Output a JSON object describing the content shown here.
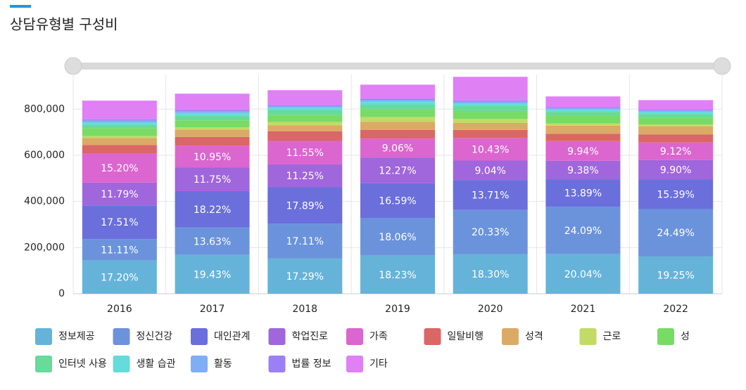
{
  "chart_data": {
    "type": "stacked_bar",
    "title": "상담유형별 구성비",
    "categories": [
      "2016",
      "2017",
      "2018",
      "2019",
      "2020",
      "2021",
      "2022"
    ],
    "ylim": [
      0,
      950000
    ],
    "yticks": [
      0,
      {
        "value": 200000,
        "label": "200,000"
      },
      {
        "value": 400000,
        "label": "400,000"
      },
      {
        "value": 600000,
        "label": "600,000"
      },
      {
        "value": 800000,
        "label": "800,000"
      }
    ],
    "grid": true,
    "series": [
      {
        "name": "정보제공",
        "color": "#66b3d9",
        "values": [
          143800,
          168500,
          152500,
          165200,
          172000,
          171300,
          161500
        ],
        "share_labels": [
          "17.20%",
          "19.43%",
          "17.29%",
          "18.23%",
          "18.30%",
          "20.04%",
          "19.25%"
        ]
      },
      {
        "name": "정신건강",
        "color": "#6b93db",
        "values": [
          92900,
          118200,
          150900,
          163600,
          191100,
          206000,
          205500
        ],
        "share_labels": [
          "11.11%",
          "13.63%",
          "17.11%",
          "18.06%",
          "20.33%",
          "24.09%",
          "24.49%"
        ]
      },
      {
        "name": "대인관계",
        "color": "#6a6fdb",
        "values": [
          146400,
          158000,
          157800,
          150300,
          128900,
          118800,
          129100
        ],
        "share_labels": [
          "17.51%",
          "18.22%",
          "17.89%",
          "16.59%",
          "13.71%",
          "13.89%",
          "15.39%"
        ]
      },
      {
        "name": "학업진로",
        "color": "#a066db",
        "values": [
          98600,
          101900,
          99200,
          111200,
          85000,
          80200,
          83100
        ],
        "share_labels": [
          "11.79%",
          "11.75%",
          "11.25%",
          "12.27%",
          "9.04%",
          "9.38%",
          "9.90%"
        ]
      },
      {
        "name": "가족",
        "color": "#db66cf",
        "values": [
          127100,
          94900,
          101900,
          82100,
          98000,
          85000,
          76500
        ],
        "share_labels": [
          "15.20%",
          "10.95%",
          "11.55%",
          "9.06%",
          "10.43%",
          "9.94%",
          "9.12%"
        ]
      },
      {
        "name": "일탈비행",
        "color": "#db6666",
        "values": [
          36000,
          38000,
          42000,
          38000,
          35000,
          32000,
          35000
        ]
      },
      {
        "name": "성격",
        "color": "#dbaa66",
        "values": [
          30000,
          32000,
          25000,
          35000,
          30000,
          35000,
          35000
        ]
      },
      {
        "name": "근로",
        "color": "#c2db66",
        "values": [
          8000,
          10000,
          15000,
          20000,
          18000,
          10000,
          8000
        ]
      },
      {
        "name": "성",
        "color": "#78db66",
        "values": [
          35000,
          30000,
          30000,
          35000,
          35000,
          35000,
          30000
        ]
      },
      {
        "name": "인터넷 사용",
        "color": "#66db9a",
        "values": [
          15000,
          20000,
          22000,
          20000,
          20000,
          15000,
          15000
        ]
      },
      {
        "name": "생활 습관",
        "color": "#66dbdb",
        "values": [
          10000,
          12000,
          10000,
          12000,
          12000,
          10000,
          10000
        ]
      },
      {
        "name": "활동",
        "color": "#80aef5",
        "values": [
          8000,
          8000,
          7000,
          8000,
          8000,
          6000,
          5000
        ]
      },
      {
        "name": "법률 정보",
        "color": "#9b80f5",
        "values": [
          5000,
          5000,
          5000,
          5000,
          5000,
          4000,
          4000
        ]
      },
      {
        "name": "기타",
        "color": "#e080f5",
        "values": [
          81000,
          70500,
          63700,
          60600,
          102000,
          46700,
          41300
        ]
      }
    ]
  }
}
